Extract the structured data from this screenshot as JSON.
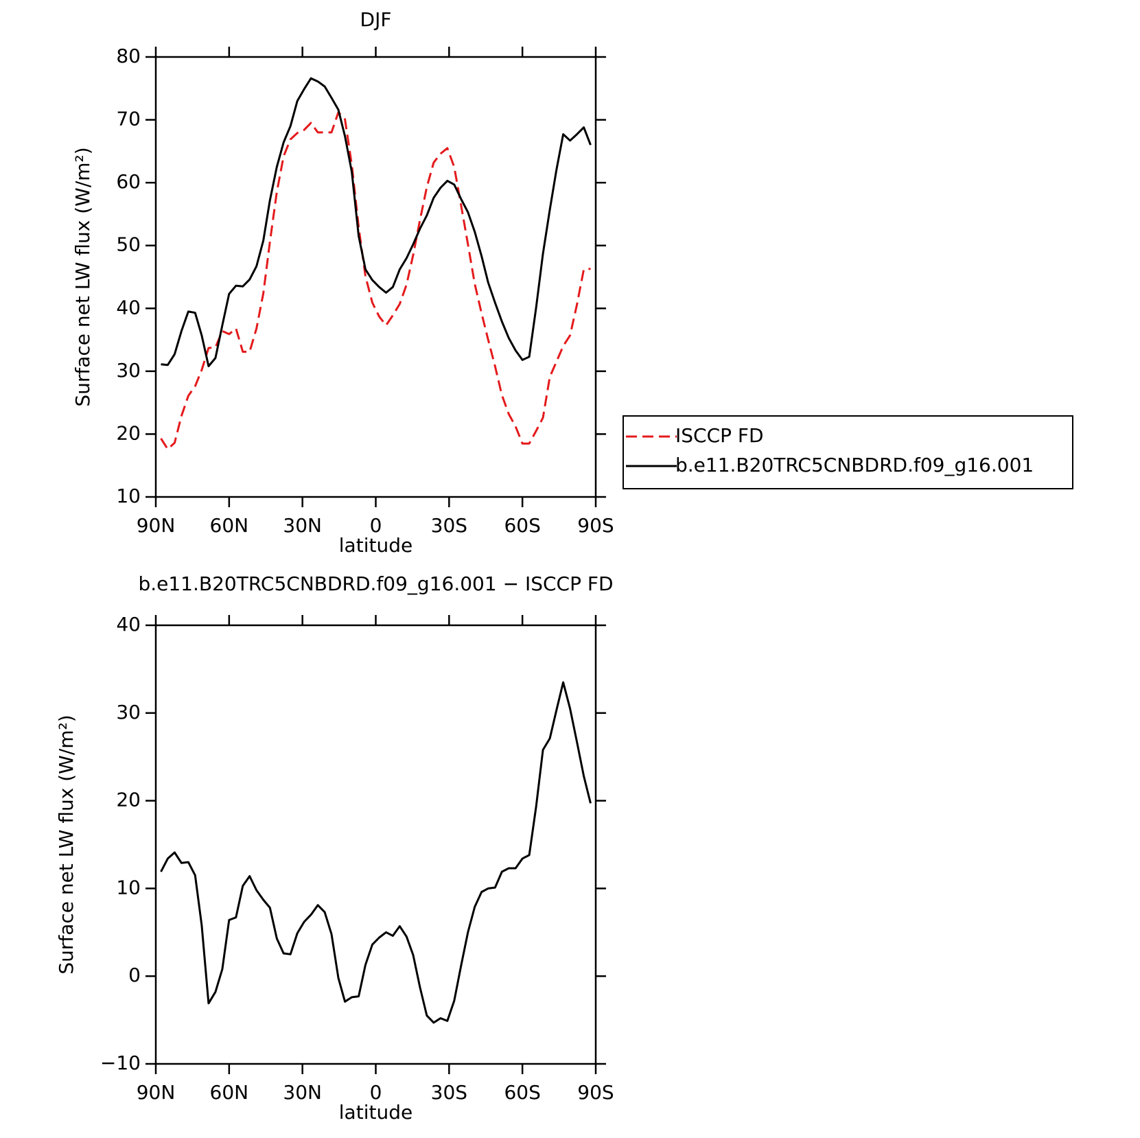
{
  "chart_data": [
    {
      "type": "line",
      "title": "DJF",
      "xlabel": "latitude",
      "ylabel": "Surface net LW flux (W/m²)",
      "x": [
        87.9,
        85.1,
        82.3,
        79.5,
        76.7,
        73.9,
        71.2,
        68.4,
        65.6,
        62.8,
        60.0,
        57.2,
        54.4,
        51.6,
        48.8,
        46.0,
        43.3,
        40.5,
        37.7,
        34.9,
        32.1,
        29.3,
        26.5,
        23.7,
        20.9,
        18.1,
        15.3,
        12.6,
        9.8,
        7.0,
        4.2,
        1.4,
        -1.4,
        -4.2,
        -7.0,
        -9.8,
        -12.6,
        -15.3,
        -18.1,
        -20.9,
        -23.7,
        -26.5,
        -29.3,
        -32.1,
        -34.9,
        -37.7,
        -40.5,
        -43.3,
        -46.0,
        -48.8,
        -51.6,
        -54.4,
        -57.2,
        -60.0,
        -62.8,
        -65.6,
        -68.4,
        -71.2,
        -73.9,
        -76.7,
        -79.5,
        -82.3,
        -85.1,
        -87.9
      ],
      "series": [
        {
          "name": "ISCCP FD",
          "color": "#e41a1c",
          "dashed": true,
          "values": [
            19.3,
            17.6,
            18.6,
            22.9,
            26.1,
            27.6,
            30.2,
            33.7,
            33.8,
            36.4,
            35.9,
            36.8,
            33.1,
            33.1,
            36.8,
            42.4,
            50.6,
            58.5,
            64.2,
            66.9,
            67.9,
            68.4,
            69.5,
            68.0,
            68.0,
            68.0,
            71.2,
            70.1,
            62.8,
            52.9,
            45.1,
            40.9,
            38.7,
            37.3,
            38.9,
            40.7,
            43.8,
            48.5,
            54.1,
            59.3,
            63.2,
            64.6,
            65.5,
            62.5,
            56.4,
            50.2,
            43.9,
            39.2,
            35.0,
            30.8,
            26.2,
            23.2,
            21.2,
            18.5,
            18.5,
            20.5,
            22.6,
            29.1,
            31.5,
            34.0,
            35.7,
            40.6,
            46.2,
            46.3
          ]
        },
        {
          "name": "b.e11.B20TRC5CNBDRD.f09_g16.001",
          "color": "#000000",
          "dashed": false,
          "values": [
            31.1,
            31.0,
            32.7,
            36.4,
            39.5,
            39.3,
            35.7,
            30.8,
            32.1,
            37.3,
            42.3,
            43.6,
            43.5,
            44.6,
            46.7,
            50.8,
            57.2,
            62.5,
            66.4,
            69.0,
            73.0,
            74.9,
            76.6,
            76.1,
            75.3,
            73.5,
            71.6,
            67.4,
            61.7,
            51.5,
            46.2,
            44.5,
            43.4,
            42.5,
            43.4,
            46.2,
            48.0,
            50.2,
            52.7,
            54.8,
            57.6,
            59.2,
            60.3,
            59.7,
            57.4,
            55.3,
            52.2,
            48.3,
            44.1,
            40.9,
            37.9,
            35.3,
            33.3,
            31.8,
            32.3,
            40.1,
            48.7,
            55.7,
            62.0,
            67.7,
            66.7,
            67.7,
            68.8,
            66.0
          ]
        }
      ],
      "xlim": [
        90,
        -90
      ],
      "xticks": [
        {
          "value": 90,
          "label": "90N"
        },
        {
          "value": 60,
          "label": "60N"
        },
        {
          "value": 30,
          "label": "30N"
        },
        0,
        {
          "value": -30,
          "label": "30S"
        },
        {
          "value": -60,
          "label": "60S"
        },
        {
          "value": -90,
          "label": "90S"
        }
      ],
      "ylim": [
        10,
        80
      ],
      "yticks": [
        10,
        20,
        30,
        40,
        50,
        60,
        70,
        80
      ],
      "legend": "right"
    },
    {
      "type": "line",
      "title": "b.e11.B20TRC5CNBDRD.f09_g16.001 − ISCCP FD",
      "xlabel": "latitude",
      "ylabel": "Surface net LW flux (W/m²)",
      "x": [
        87.9,
        85.1,
        82.3,
        79.5,
        76.7,
        73.9,
        71.2,
        68.4,
        65.6,
        62.8,
        60.0,
        57.2,
        54.4,
        51.6,
        48.8,
        46.0,
        43.3,
        40.5,
        37.7,
        34.9,
        32.1,
        29.3,
        26.5,
        23.7,
        20.9,
        18.1,
        15.3,
        12.6,
        9.8,
        7.0,
        4.2,
        1.4,
        -1.4,
        -4.2,
        -7.0,
        -9.8,
        -12.6,
        -15.3,
        -18.1,
        -20.9,
        -23.7,
        -26.5,
        -29.3,
        -32.1,
        -34.9,
        -37.7,
        -40.5,
        -43.3,
        -46.0,
        -48.8,
        -51.6,
        -54.4,
        -57.2,
        -60.0,
        -62.8,
        -65.6,
        -68.4,
        -71.2,
        -73.9,
        -76.7,
        -79.5,
        -82.3,
        -85.1,
        -87.9
      ],
      "series": [
        {
          "color": "#000000",
          "dashed": false,
          "values": [
            11.9,
            13.4,
            14.1,
            12.9,
            13.0,
            11.5,
            5.8,
            -3.1,
            -1.8,
            0.8,
            6.4,
            6.7,
            10.3,
            11.4,
            9.8,
            8.7,
            7.8,
            4.3,
            2.6,
            2.5,
            4.9,
            6.2,
            7.0,
            8.1,
            7.3,
            4.8,
            -0.2,
            -2.9,
            -2.4,
            -2.3,
            1.3,
            3.6,
            4.4,
            5.0,
            4.6,
            5.7,
            4.5,
            2.4,
            -1.3,
            -4.5,
            -5.3,
            -4.8,
            -5.1,
            -2.8,
            1.2,
            5.0,
            7.9,
            9.6,
            10.0,
            10.1,
            11.9,
            12.3,
            12.3,
            13.4,
            13.8,
            19.3,
            25.8,
            27.1,
            30.3,
            33.5,
            30.5,
            26.7,
            22.8,
            19.7
          ]
        }
      ],
      "xlim": [
        90,
        -90
      ],
      "xticks": [
        {
          "value": 90,
          "label": "90N"
        },
        {
          "value": 60,
          "label": "60N"
        },
        {
          "value": 30,
          "label": "30N"
        },
        0,
        {
          "value": -30,
          "label": "30S"
        },
        {
          "value": -60,
          "label": "60S"
        },
        {
          "value": -90,
          "label": "90S"
        }
      ],
      "ylim": [
        -10,
        40
      ],
      "yticks": [
        {
          "value": -10,
          "label": "−10"
        },
        0,
        10,
        20,
        30,
        40
      ]
    }
  ]
}
